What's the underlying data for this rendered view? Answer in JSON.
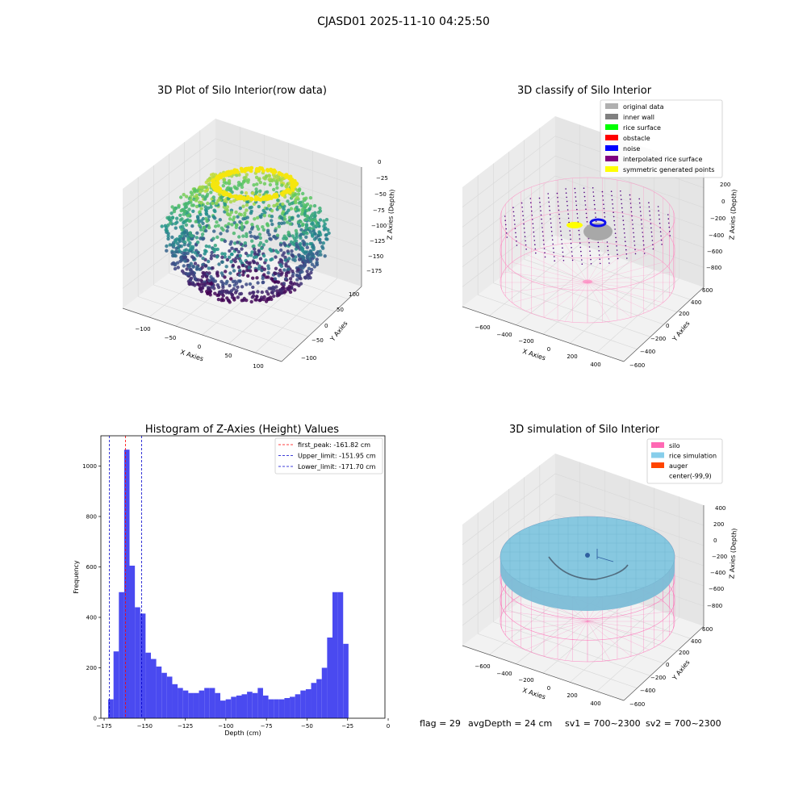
{
  "suptitle": "CJASD01 2025-11-10 04:25:50",
  "footer": {
    "flag": "flag = 29",
    "avg_depth": "avgDepth = 24 cm",
    "sv1": "sv1 = 700~2300",
    "sv2": "sv2 = 700~2300"
  },
  "chart_data": [
    {
      "type": "scatter",
      "title": "3D Plot of Silo Interior(row data)",
      "xlabel": "X Axies",
      "ylabel": "Y Axies",
      "zlabel": "Z Axies (Depth)",
      "x_ticks": [
        "−100",
        "−50",
        "0",
        "50",
        "100"
      ],
      "y_ticks": [
        "−100",
        "−50",
        "0",
        "50",
        "100"
      ],
      "z_ticks": [
        "0",
        "−25",
        "−50",
        "−75",
        "−100",
        "−125",
        "−150",
        "−175"
      ],
      "colormap": "viridis"
    },
    {
      "type": "scatter",
      "title": "3D classify of Silo Interior",
      "xlabel": "X Axies",
      "ylabel": "Y Axies",
      "zlabel": "Z Axies (Depth)",
      "x_ticks": [
        "−600",
        "−400",
        "−200",
        "0",
        "200",
        "400"
      ],
      "y_ticks": [
        "−600",
        "−400",
        "−200",
        "0",
        "200",
        "400",
        "600"
      ],
      "z_ticks": [
        "200",
        "0",
        "−200",
        "−400",
        "−600",
        "−800"
      ],
      "legend": [
        {
          "label": "original data",
          "color": "#b0b0b0"
        },
        {
          "label": "inner wall",
          "color": "#808080"
        },
        {
          "label": "rice surface",
          "color": "#00ff00"
        },
        {
          "label": "obstacle",
          "color": "#ff0000"
        },
        {
          "label": "noise",
          "color": "#0000ff"
        },
        {
          "label": "interpolated rice surface",
          "color": "#800080"
        },
        {
          "label": "symmetric generated points",
          "color": "#ffff00"
        }
      ],
      "legend_position": "top-right"
    },
    {
      "type": "bar",
      "title": "Histogram of Z-Axies (Height) Values",
      "xlabel": "Depth (cm)",
      "ylabel": "Frequency",
      "xlim": [
        -177,
        -2
      ],
      "ylim": [
        0,
        1120
      ],
      "x_ticks": [
        -175,
        -150,
        -125,
        -100,
        -75,
        -50,
        -25,
        0
      ],
      "x_tick_labels": [
        "−175",
        "−150",
        "−125",
        "−100",
        "−75",
        "−50",
        "−25",
        "0"
      ],
      "y_ticks": [
        0,
        200,
        400,
        600,
        800,
        1000
      ],
      "bin_start": -172.5,
      "bin_width": 3.29,
      "values": [
        75,
        265,
        500,
        1065,
        605,
        440,
        415,
        260,
        235,
        205,
        180,
        165,
        135,
        120,
        110,
        100,
        100,
        110,
        120,
        120,
        100,
        70,
        75,
        85,
        90,
        95,
        105,
        100,
        120,
        90,
        75,
        75,
        75,
        80,
        85,
        95,
        110,
        115,
        140,
        155,
        200,
        320,
        500,
        500,
        295
      ],
      "bar_color": "#4a4af0",
      "vlines": [
        {
          "label": "first_peak: -161.82 cm",
          "x": -161.82,
          "color": "#ff0000"
        },
        {
          "label": "Upper_limit: -151.95 cm",
          "x": -151.95,
          "color": "#0000cc"
        },
        {
          "label": "Lower_limit: -171.70 cm",
          "x": -171.7,
          "color": "#0000cc"
        }
      ],
      "legend_position": "top-right"
    },
    {
      "type": "surface",
      "title": "3D simulation of Silo Interior",
      "xlabel": "X Axies",
      "ylabel": "Y Axies",
      "zlabel": "Z Axies (Depth)",
      "x_ticks": [
        "−600",
        "−400",
        "−200",
        "0",
        "200",
        "400"
      ],
      "y_ticks": [
        "−600",
        "−400",
        "−200",
        "0",
        "200",
        "400",
        "600"
      ],
      "z_ticks": [
        "400",
        "200",
        "0",
        "−200",
        "−400",
        "−600",
        "−800"
      ],
      "legend": [
        {
          "label": "silo",
          "color": "#ff69b4"
        },
        {
          "label": "rice simulation",
          "color": "#87ceeb"
        },
        {
          "label": "auger",
          "color": "#ff4500"
        },
        {
          "label": "center(-99,9)",
          "color": "none"
        }
      ],
      "legend_position": "top-right"
    }
  ]
}
